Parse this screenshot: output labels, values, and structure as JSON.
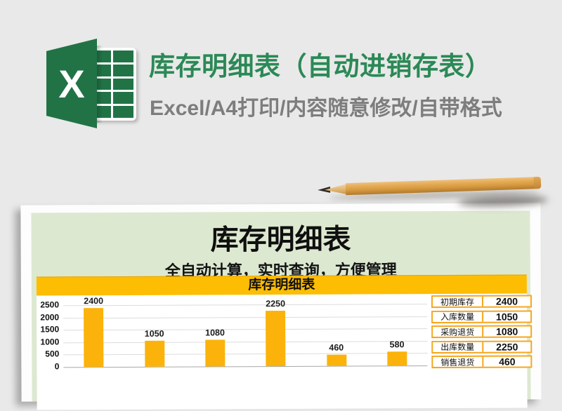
{
  "hero": {
    "logo_glyph": "X",
    "title": "库存明细表（自动进销存表）",
    "subtitle": "Excel/A4打印/内容随意修改/自带格式"
  },
  "preview": {
    "doc_title": "库存明细表",
    "doc_subtitle": "全自动计算，实时查询，方便管理",
    "widget_title": "库存明细表",
    "summary_rows": [
      {
        "label": "初期库存",
        "value": "2400"
      },
      {
        "label": "入库数量",
        "value": "1050"
      },
      {
        "label": "采购退货",
        "value": "1080"
      },
      {
        "label": "出库数量",
        "value": "2250"
      },
      {
        "label": "销售退货",
        "value": "460"
      }
    ]
  },
  "chart_data": {
    "type": "bar",
    "title": "库存明细表",
    "values": [
      2400,
      1050,
      1080,
      2250,
      460,
      580
    ],
    "data_labels": [
      "2400",
      "1050",
      "1080",
      "2250",
      "460",
      "580"
    ],
    "y_ticks": [
      2500,
      2000,
      1500,
      1000,
      500,
      0
    ],
    "ylim": [
      0,
      2500
    ],
    "grid": true,
    "legend": false,
    "bar_color": "#fbb30b"
  },
  "colors": {
    "excel_green": "#217346",
    "title_green": "#2b8956",
    "subtitle_gray": "#7d7d7d",
    "panel_green": "#dde8d0",
    "header_gold": "#fdbd02",
    "table_border_orange": "#f6a71f",
    "background_gray": "#e9e9e9",
    "paper_white": "#fdfdfd"
  }
}
